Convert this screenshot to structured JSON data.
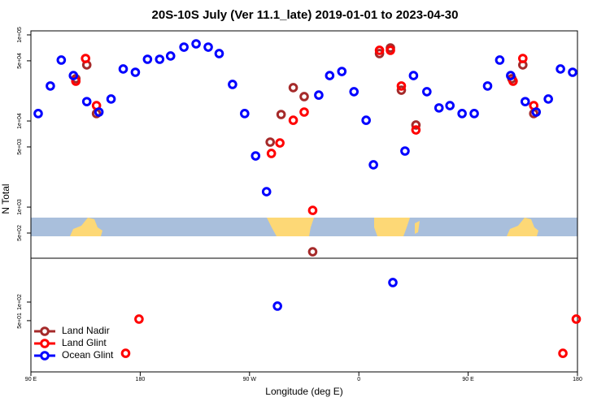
{
  "chart_data": [
    {
      "type": "scatter",
      "title": "20S-10S July (Ver 11.1_late)   2019-01-01 to 2023-04-30",
      "ylabel": "N Total",
      "log_y": true,
      "xlim": [
        90,
        540
      ],
      "ylim": [
        255,
        111400
      ],
      "yticks": [
        {
          "value": 100000,
          "label": "1e+05"
        },
        {
          "value": 50000,
          "label": "5e+04"
        },
        {
          "value": 10000,
          "label": "1e+04"
        },
        {
          "value": 5000,
          "label": "5e+03"
        },
        {
          "value": 1000,
          "label": "1e+03"
        },
        {
          "value": 500,
          "label": "5e+02"
        }
      ],
      "series": [
        {
          "color": "#a52a2a",
          "x": [
            136,
            127,
            144,
            287,
            296,
            306,
            315,
            322,
            377,
            386,
            395,
            407,
            495,
            486,
            504
          ],
          "values": [
            44800,
            31000,
            12200,
            5690,
            11900,
            24400,
            19200,
            303,
            60700,
            70600,
            22800,
            8980,
            44800,
            31000,
            12200
          ]
        },
        {
          "color": "#ff0000",
          "x": [
            135,
            127,
            144,
            288,
            295,
            306,
            315,
            322,
            377,
            386,
            395,
            407,
            495,
            487,
            504
          ],
          "values": [
            53200,
            29000,
            15100,
            4200,
            5560,
            10200,
            12700,
            916,
            66200,
            66200,
            25500,
            7870,
            53200,
            29000,
            15100
          ]
        },
        {
          "color": "#0000ff",
          "x": [
            96,
            106,
            115,
            125,
            136,
            146,
            156,
            166,
            176,
            186,
            196,
            205,
            216,
            226,
            236,
            245,
            256,
            266,
            275,
            284,
            327,
            336,
            346,
            356,
            366,
            372,
            398,
            405,
            416,
            426,
            435,
            445,
            455,
            466,
            476,
            485,
            497,
            506,
            516,
            526,
            536
          ],
          "values": [
            12200,
            25500,
            51000,
            33700,
            16800,
            12700,
            18000,
            40200,
            36800,
            52100,
            52100,
            56900,
            72100,
            78700,
            72100,
            60700,
            26600,
            12200,
            3930,
            1510,
            20000,
            33700,
            37600,
            21900,
            10200,
            3100,
            4480,
            33700,
            21900,
            14200,
            15100,
            12200,
            12200,
            25500,
            51000,
            33700,
            16800,
            12700,
            18000,
            40200,
            36800
          ]
        }
      ]
    },
    {
      "type": "scatter",
      "xlabel": "Longitude (deg E)",
      "log_y": true,
      "xlim": [
        90,
        540
      ],
      "ylim": [
        7.4,
        513
      ],
      "xticks": [
        {
          "value": 90,
          "label": "90 E"
        },
        180,
        {
          "value": 270,
          "label": "90 W"
        },
        {
          "value": 360,
          "label": "0"
        },
        {
          "value": 450,
          "label": "90 E"
        },
        {
          "value": 540,
          "label": "180"
        }
      ],
      "yticks": [
        {
          "value": 100,
          "label": "1e+02"
        },
        {
          "value": 50,
          "label": "5e+01"
        }
      ],
      "legend": "lower left",
      "series": [
        {
          "name": "Land Nadir",
          "color": "#a52a2a",
          "x": [],
          "values": []
        },
        {
          "name": "Land Glint",
          "color": "#ff0000",
          "x": [
            168,
            179,
            528,
            539
          ],
          "values": [
            14.8,
            53,
            14.8,
            53
          ]
        },
        {
          "name": "Ocean Glint",
          "color": "#0000ff",
          "x": [
            293,
            388
          ],
          "values": [
            86,
            207
          ]
        }
      ]
    }
  ]
}
